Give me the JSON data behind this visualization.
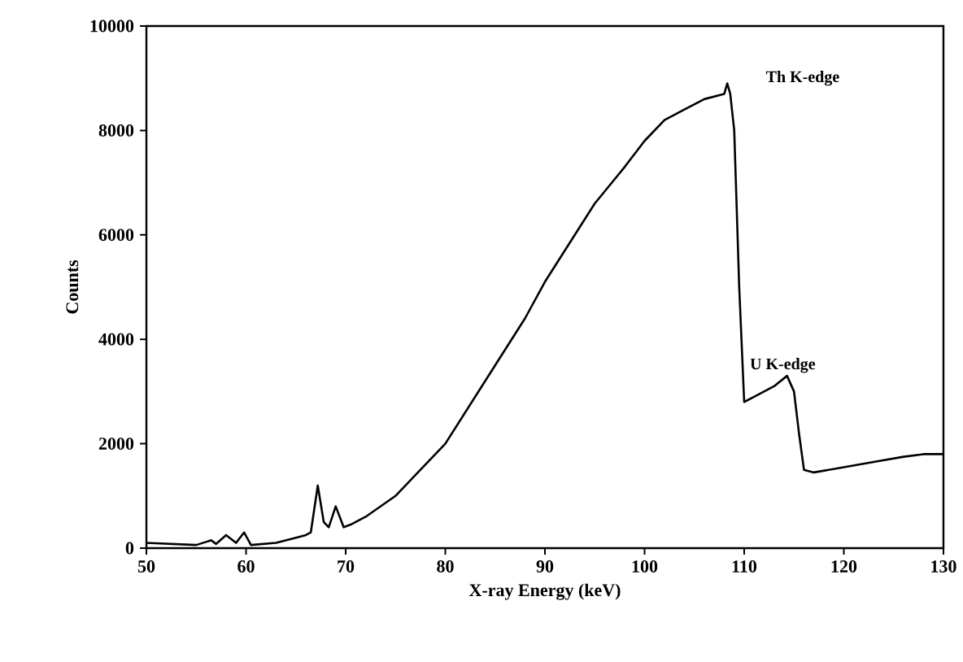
{
  "chart_data": {
    "type": "line",
    "xlabel": "X-ray Energy (keV)",
    "ylabel": "Counts",
    "xlim": [
      50,
      130
    ],
    "xticks": [
      50,
      60,
      70,
      80,
      90,
      100,
      110,
      120,
      130
    ],
    "ylim": [
      0,
      10000
    ],
    "yticks": [
      0,
      2000,
      4000,
      6000,
      8000,
      10000
    ],
    "grid": false,
    "marker": "none",
    "line_style": "solid",
    "annotations": [
      "Th K-edge",
      "U K-edge"
    ],
    "series": [
      {
        "color": "#000000",
        "x": [
          50,
          55,
          56.5,
          57,
          58,
          59,
          59.8,
          60.5,
          63,
          65,
          66,
          66.5,
          67.2,
          67.8,
          68.3,
          69,
          69.8,
          70.5,
          72,
          75,
          77,
          80,
          82,
          85,
          88,
          90,
          93,
          95,
          98,
          100,
          102,
          104,
          106,
          108,
          108.3,
          108.6,
          109,
          109.5,
          110,
          111,
          113,
          114.3,
          115,
          115.5,
          116,
          117,
          120,
          123,
          126,
          128,
          130
        ],
        "values": [
          100,
          60,
          150,
          80,
          250,
          100,
          300,
          60,
          100,
          200,
          250,
          300,
          1200,
          500,
          400,
          800,
          400,
          450,
          600,
          1000,
          1400,
          2000,
          2600,
          3500,
          4400,
          5100,
          6000,
          6600,
          7300,
          7800,
          8200,
          8400,
          8600,
          8700,
          8900,
          8700,
          8000,
          5000,
          2800,
          2900,
          3100,
          3300,
          3000,
          2200,
          1500,
          1450,
          1550,
          1650,
          1750,
          1800,
          1800
        ]
      }
    ]
  }
}
